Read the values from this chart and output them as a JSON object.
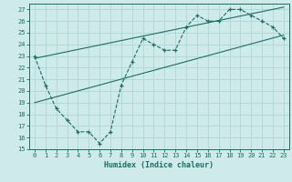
{
  "xlabel": "Humidex (Indice chaleur)",
  "ylabel": "",
  "bg_color": "#ceeaea",
  "line_color": "#1a6e62",
  "grid_color": "#b2d8d8",
  "xlim": [
    -0.5,
    23.5
  ],
  "ylim": [
    15,
    27.5
  ],
  "yticks": [
    15,
    16,
    17,
    18,
    19,
    20,
    21,
    22,
    23,
    24,
    25,
    26,
    27
  ],
  "xticks": [
    0,
    1,
    2,
    3,
    4,
    5,
    6,
    7,
    8,
    9,
    10,
    11,
    12,
    13,
    14,
    15,
    16,
    17,
    18,
    19,
    20,
    21,
    22,
    23
  ],
  "curve_x": [
    0,
    1,
    2,
    3,
    4,
    5,
    6,
    7,
    8,
    9,
    10,
    11,
    12,
    13,
    14,
    15,
    16,
    17,
    18,
    19,
    20,
    21,
    22,
    23
  ],
  "curve_y": [
    23.0,
    20.5,
    18.5,
    17.5,
    16.5,
    16.5,
    15.5,
    16.5,
    20.5,
    22.5,
    24.5,
    24.0,
    23.5,
    23.5,
    25.5,
    26.5,
    26.0,
    26.0,
    27.0,
    27.0,
    26.5,
    26.0,
    25.5,
    24.5
  ],
  "line2_x": [
    0,
    23
  ],
  "line2_y": [
    22.8,
    27.2
  ],
  "line3_x": [
    0,
    23
  ],
  "line3_y": [
    19.0,
    24.8
  ]
}
